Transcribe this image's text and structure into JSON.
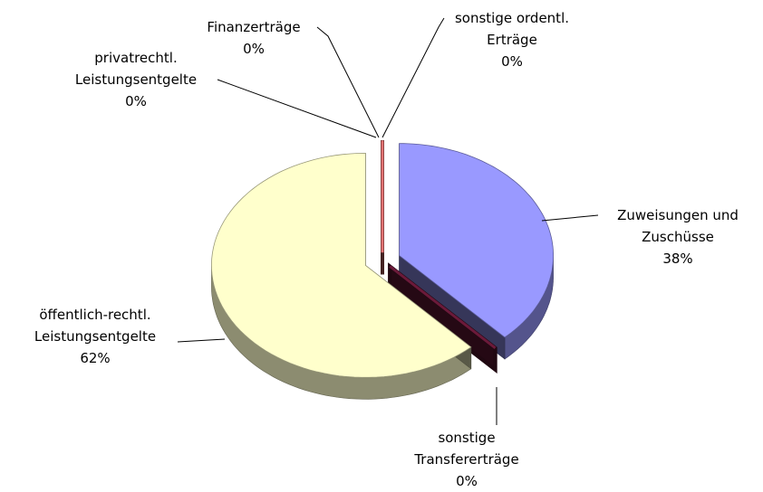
{
  "chart_data": {
    "type": "pie3d",
    "categories": [
      "Zuweisungen und Zuschüsse",
      "sonstige Transfererträge",
      "öffentlich-rechtl. Leistungsentgelte",
      "privatrechtl. Leistungsentgelte",
      "Finanzerträge",
      "sonstige ordentl. Erträge"
    ],
    "values": [
      38,
      0,
      62,
      0,
      0,
      0
    ],
    "value_labels": [
      "38%",
      "0%",
      "62%",
      "0%",
      "0%",
      "0%"
    ],
    "colors": [
      "#9999ff",
      "#6b1a3a",
      "#ffffcc",
      "#2a2a2a",
      "#222222",
      "#e07070"
    ]
  }
}
